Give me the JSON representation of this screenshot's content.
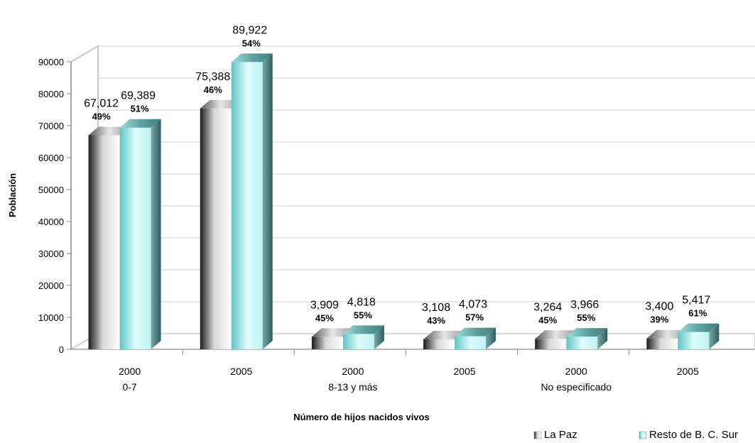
{
  "chart_data": {
    "type": "bar",
    "xlabel": "Número de hijos nacidos vivos",
    "ylabel": "Población",
    "ylim": [
      0,
      90000
    ],
    "yticks": [
      "0",
      "10000",
      "20000",
      "30000",
      "40000",
      "50000",
      "60000",
      "70000",
      "80000",
      "90000"
    ],
    "grid": true,
    "legend_position": "bottom-right",
    "categories": [
      {
        "year": "2000",
        "group": "0-7"
      },
      {
        "year": "2005",
        "group": ""
      },
      {
        "year": "2000",
        "group": "8-13 y más"
      },
      {
        "year": "2005",
        "group": ""
      },
      {
        "year": "2000",
        "group": "No especificado"
      },
      {
        "year": "2005",
        "group": ""
      }
    ],
    "series": [
      {
        "name": "La Paz",
        "color": "#9a9a9a",
        "values": [
          67012,
          75388,
          3909,
          3108,
          3264,
          3400
        ],
        "value_labels": [
          "67,012",
          "75,388",
          "3,909",
          "3,108",
          "3,264",
          "3,400"
        ],
        "percent_labels": [
          "49%",
          "46%",
          "45%",
          "43%",
          "45%",
          "39%"
        ]
      },
      {
        "name": "Resto de B. C. Sur",
        "color": "#7fd6d6",
        "values": [
          69389,
          89922,
          4818,
          4073,
          3966,
          5417
        ],
        "value_labels": [
          "69,389",
          "89,922",
          "4,818",
          "4,073",
          "3,966",
          "5,417"
        ],
        "percent_labels": [
          "51%",
          "54%",
          "55%",
          "57%",
          "55%",
          "61%"
        ]
      }
    ]
  }
}
